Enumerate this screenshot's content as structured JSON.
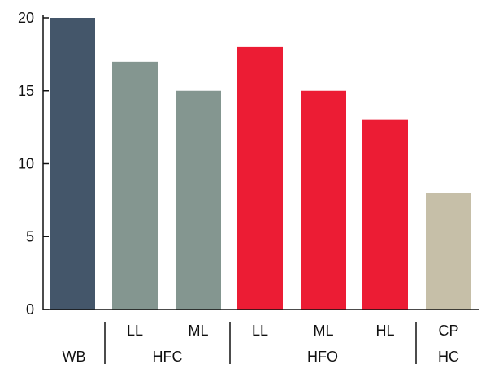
{
  "chart_data": {
    "type": "bar",
    "title": "",
    "xlabel": "",
    "ylabel": "",
    "ylim": [
      0,
      20
    ],
    "yticks": [
      0,
      5,
      10,
      15,
      20
    ],
    "grid": false,
    "bars": [
      {
        "group": "WB",
        "label": "",
        "value": 20,
        "color": "#44566a"
      },
      {
        "group": "HFC",
        "label": "LL",
        "value": 17,
        "color": "#849690"
      },
      {
        "group": "HFC",
        "label": "ML",
        "value": 15,
        "color": "#849690"
      },
      {
        "group": "HFO",
        "label": "LL",
        "value": 18,
        "color": "#ec1c34"
      },
      {
        "group": "HFO",
        "label": "ML",
        "value": 15,
        "color": "#ec1c34"
      },
      {
        "group": "HFO",
        "label": "HL",
        "value": 13,
        "color": "#ec1c34"
      },
      {
        "group": "HC",
        "label": "CP",
        "value": 8,
        "color": "#c6bfa8"
      }
    ],
    "groups": [
      "WB",
      "HFC",
      "HFO",
      "HC"
    ]
  }
}
